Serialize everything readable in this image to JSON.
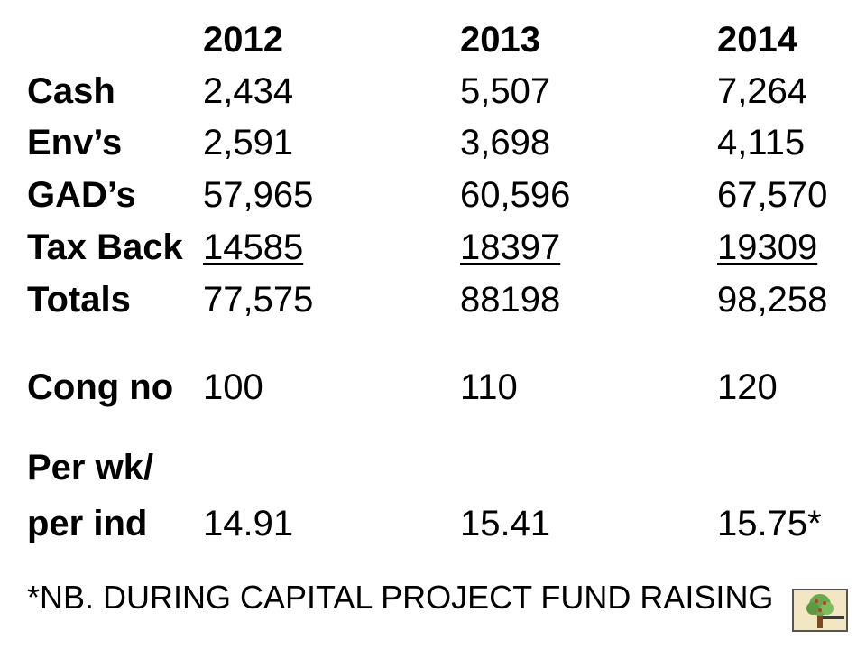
{
  "years": [
    "2012",
    "2013",
    "2014"
  ],
  "rows": [
    {
      "label": "Cash",
      "values": [
        "2,434",
        "5,507",
        "7,264"
      ],
      "underline": false
    },
    {
      "label": "Env’s",
      "values": [
        "2,591",
        "3,698",
        "4,115"
      ],
      "underline": false
    },
    {
      "label": "GAD’s",
      "values": [
        "57,965",
        "60,596",
        "67,570"
      ],
      "underline": false
    },
    {
      "label": "Tax Back",
      "values": [
        "14585",
        "18397",
        "19309"
      ],
      "underline": true
    },
    {
      "label": "Totals",
      "values": [
        "77,575",
        "88198",
        "98,258"
      ],
      "underline": false
    },
    {
      "label": "Cong no",
      "values": [
        "100",
        "110",
        "120"
      ],
      "underline": false
    }
  ],
  "per_week": {
    "label_line1": "Per wk/",
    "label_line2": "per ind",
    "values": [
      "14.91",
      "15.41",
      "15.75*"
    ]
  },
  "footnote": "*NB. DURING CAPITAL PROJECT FUND RAISING",
  "logo": {
    "icon": "tree-icon",
    "colors": {
      "foliage": "#6aa84f",
      "trunk": "#7a4a1e",
      "background": "#f3e6c2"
    }
  }
}
